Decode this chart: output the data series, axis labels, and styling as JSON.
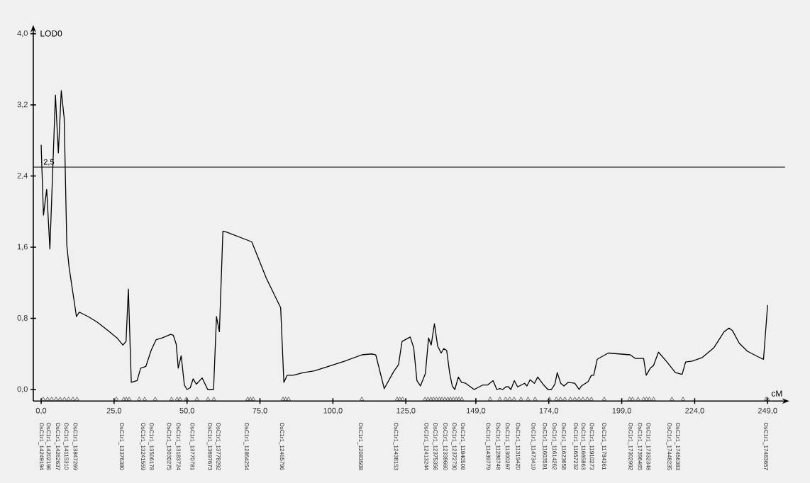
{
  "chart_data": {
    "type": "line",
    "xlabel": "cM",
    "ylabel": "LOD0",
    "xlim": [
      -2.7,
      255
    ],
    "ylim": [
      -0.13,
      4.05
    ],
    "xticks": [
      {
        "value": 0,
        "label": "0,0"
      },
      {
        "value": 25,
        "label": "25,0"
      },
      {
        "value": 50,
        "label": "50,0"
      },
      {
        "value": 75,
        "label": "75,0"
      },
      {
        "value": 100,
        "label": "100,0"
      },
      {
        "value": 125,
        "label": "125,0"
      },
      {
        "value": 149,
        "label": "149,0"
      },
      {
        "value": 174,
        "label": "174,0"
      },
      {
        "value": 199,
        "label": "199,0"
      },
      {
        "value": 224,
        "label": "224,0"
      },
      {
        "value": 249,
        "label": "249,0"
      }
    ],
    "yticks": [
      {
        "value": 0,
        "label": "0,0"
      },
      {
        "value": 0.8,
        "label": "0,8"
      },
      {
        "value": 1.6,
        "label": "1,6"
      },
      {
        "value": 2.4,
        "label": "2,4"
      },
      {
        "value": 3.2,
        "label": "3,2"
      },
      {
        "value": 4.0,
        "label": "4,0"
      }
    ],
    "grid": false,
    "ref_lines": [
      {
        "axis": "y",
        "value": 2.5,
        "label": "2,5",
        "color": "#000000"
      }
    ],
    "series": [
      {
        "type": "line",
        "color": "#000000",
        "marker": "none",
        "line_style": "solid",
        "x": [
          0,
          0.8,
          1.9,
          3.0,
          4.9,
          5.9,
          6.9,
          7.9,
          8.8,
          9.6,
          12.1,
          13.1,
          16.1,
          19.1,
          23.0,
          26.0,
          28.0,
          29.1,
          29.9,
          30.9,
          32.9,
          34.1,
          35.9,
          37.7,
          39.4,
          41.5,
          44.4,
          45.3,
          46.3,
          47.0,
          48.0,
          49.1,
          50.0,
          51.1,
          52.1,
          53.2,
          55.2,
          57.1,
          59.1,
          60.1,
          61.1,
          62.3,
          63.5,
          72.2,
          77.2,
          82.1,
          83.2,
          84.3,
          86.4,
          89.9,
          93.7,
          104.1,
          109.9,
          113.3,
          114.7,
          117.6,
          120.8,
          122.5,
          123.7,
          126.5,
          127.7,
          128.8,
          130.0,
          131.7,
          132.8,
          133.7,
          134.8,
          135.9,
          137.1,
          138.0,
          139.0,
          140.0,
          140.9,
          141.8,
          143.0,
          144.1,
          145.5,
          148.4,
          151.3,
          153.0,
          154.9,
          156.2,
          157.2,
          158.2,
          159.3,
          160.2,
          161.0,
          162.2,
          163.3,
          165.7,
          166.5,
          167.6,
          169.1,
          170.2,
          172.0,
          173.7,
          174.9,
          176.1,
          176.9,
          178.1,
          179.2,
          180.6,
          182.9,
          184.4,
          185.2,
          187.5,
          188.6,
          189.4,
          190.6,
          194.4,
          201.9,
          203.6,
          206.5,
          207.4,
          208.8,
          209.9,
          211.6,
          214.5,
          217.4,
          219.7,
          220.9,
          223.2,
          226.6,
          230.6,
          234.1,
          235.8,
          237.0,
          239.3,
          242.1,
          245.6,
          247.6,
          249.0
        ],
        "values": [
          2.75,
          1.96,
          2.25,
          1.58,
          3.31,
          2.66,
          3.36,
          3.05,
          1.62,
          1.37,
          0.82,
          0.87,
          0.82,
          0.76,
          0.66,
          0.58,
          0.5,
          0.54,
          1.13,
          0.08,
          0.1,
          0.24,
          0.26,
          0.44,
          0.56,
          0.58,
          0.62,
          0.61,
          0.51,
          0.24,
          0.38,
          0.05,
          0.0,
          0.02,
          0.12,
          0.06,
          0.13,
          0.0,
          0.0,
          0.82,
          0.65,
          1.78,
          1.77,
          1.66,
          1.25,
          0.92,
          0.08,
          0.16,
          0.16,
          0.19,
          0.21,
          0.32,
          0.39,
          0.4,
          0.39,
          0.01,
          0.2,
          0.28,
          0.54,
          0.59,
          0.47,
          0.1,
          0.04,
          0.18,
          0.58,
          0.5,
          0.74,
          0.49,
          0.41,
          0.46,
          0.44,
          0.19,
          0.04,
          0.0,
          0.14,
          0.08,
          0.07,
          0.0,
          0.05,
          0.05,
          0.1,
          0.0,
          0.01,
          0.0,
          0.03,
          0.03,
          0.0,
          0.1,
          0.03,
          0.07,
          0.04,
          0.11,
          0.07,
          0.14,
          0.06,
          0.0,
          0.0,
          0.06,
          0.19,
          0.07,
          0.04,
          0.08,
          0.07,
          0.0,
          0.04,
          0.09,
          0.16,
          0.16,
          0.34,
          0.41,
          0.39,
          0.35,
          0.35,
          0.16,
          0.24,
          0.27,
          0.42,
          0.31,
          0.19,
          0.17,
          0.31,
          0.32,
          0.36,
          0.47,
          0.65,
          0.69,
          0.66,
          0.52,
          0.43,
          0.37,
          0.34,
          0.95
        ]
      },
      {
        "type": "scatter",
        "color": "#333333",
        "marker": "triangle",
        "x": [
          0.7,
          2.2,
          3.6,
          5.1,
          6.5,
          8.0,
          9.4,
          10.9,
          12.3,
          25.8,
          28.3,
          29.2,
          30.2,
          33.6,
          35.5,
          39.1,
          44.7,
          46.6,
          47.6,
          49.8,
          53.4,
          57.2,
          59.2,
          70.8,
          71.7,
          72.7,
          82.9,
          83.8,
          84.8,
          109.9,
          122.0,
          122.9,
          123.9,
          131.6,
          132.6,
          133.6,
          134.5,
          135.5,
          136.5,
          137.4,
          138.4,
          139.4,
          140.3,
          141.3,
          142.3,
          143.2,
          144.2,
          153.9,
          157.2,
          159.2,
          160.6,
          162.1,
          164.5,
          166.9,
          169.3,
          174.2,
          176.6,
          178.0,
          179.5,
          181.4,
          182.9,
          184.3,
          185.7,
          187.2,
          188.6,
          193.0,
          201.7,
          202.7,
          204.6,
          206.5,
          207.5,
          208.5,
          209.9,
          216.2,
          220.0,
          248.5,
          249.0
        ],
        "values": [
          -0.11,
          -0.11,
          -0.11,
          -0.11,
          -0.11,
          -0.11,
          -0.11,
          -0.11,
          -0.11,
          -0.11,
          -0.11,
          -0.11,
          -0.11,
          -0.11,
          -0.11,
          -0.11,
          -0.11,
          -0.11,
          -0.11,
          -0.11,
          -0.11,
          -0.11,
          -0.11,
          -0.11,
          -0.11,
          -0.11,
          -0.11,
          -0.11,
          -0.11,
          -0.11,
          -0.11,
          -0.11,
          -0.11,
          -0.11,
          -0.11,
          -0.11,
          -0.11,
          -0.11,
          -0.11,
          -0.11,
          -0.11,
          -0.11,
          -0.11,
          -0.11,
          -0.11,
          -0.11,
          -0.11,
          -0.11,
          -0.11,
          -0.11,
          -0.11,
          -0.11,
          -0.11,
          -0.11,
          -0.11,
          -0.11,
          -0.11,
          -0.11,
          -0.11,
          -0.11,
          -0.11,
          -0.11,
          -0.11,
          -0.11,
          -0.11,
          -0.11,
          -0.11,
          -0.11,
          -0.11,
          -0.11,
          -0.11,
          -0.11,
          -0.11,
          -0.11,
          -0.11,
          -0.11,
          -0.11
        ]
      }
    ],
    "annotations": [
      "OsC1r1_14249194",
      "OsC1r1_14202196",
      "OsC1r1_14262637",
      "OsC1r1_14115310",
      "OsC1r1_13847269",
      "OsC1r1_13376380",
      "OsC1r1_13241559",
      "OsC1r1_13506178",
      "OsC1r1_13030275",
      "OsC1r1_13183724",
      "OsC1r1_13770781",
      "OsC1r1_13697673",
      "OsC1r1_13778292",
      "OsC1r1_12864254",
      "OsC1r1_12465796",
      "OsC1r1_12083508",
      "OsC1r1_12438153",
      "OsC1r1_12413244",
      "OsC1r1_12375356",
      "OsC1r1_12339660",
      "OsC1r1_12372730",
      "OsC1r1_11840508",
      "OsC1r1_11439779",
      "OsC1r1_11286748",
      "OsC1r1_11300297",
      "OsC1r1_11319420",
      "OsC1r1_11473419",
      "OsC1r1_11603591",
      "OsC1r1_11614262",
      "OsC1r1_11623658",
      "OsC1r1_11657232",
      "OsC1r1_11665863",
      "OsC1r1_11910273",
      "OsC1r1_11784361",
      "OsC1r1_17302992",
      "OsC1r1_17396465",
      "OsC1r1_17332348",
      "OsC1r1_17448235",
      "OsC1r1_17456383",
      "OsC1r1_17483657"
    ]
  }
}
